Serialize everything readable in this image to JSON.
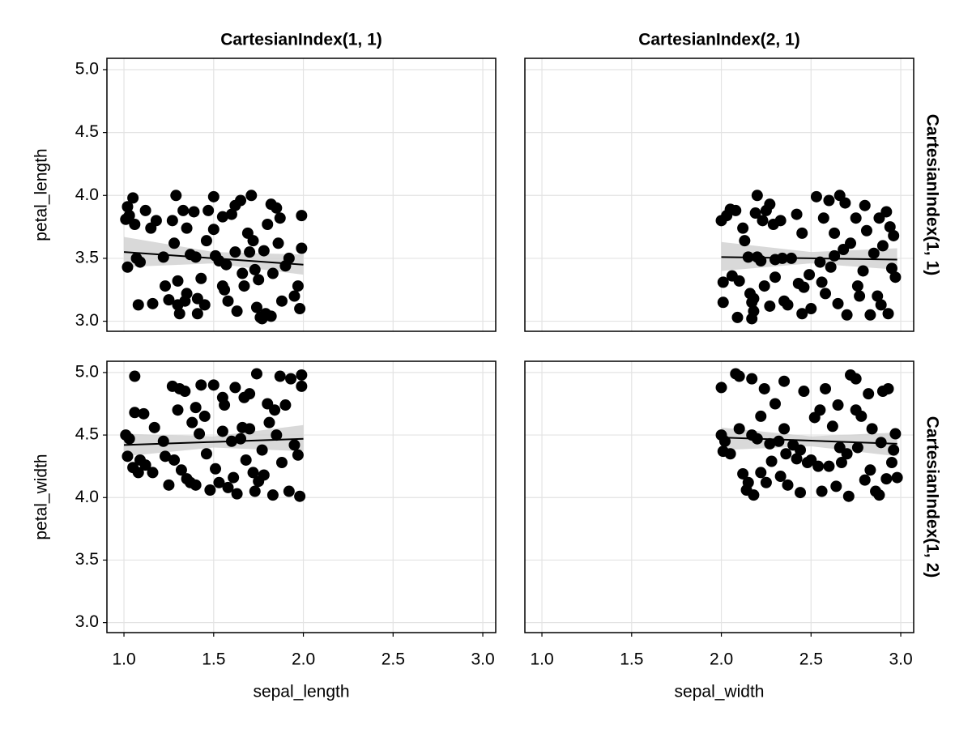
{
  "chart_data": {
    "type": "scatter",
    "color": "#000000",
    "band_color": "#d0d0d0",
    "grid": true,
    "column_titles": [
      "CartesianIndex(1, 1)",
      "CartesianIndex(2, 1)"
    ],
    "row_titles": [
      "CartesianIndex(1, 1)",
      "CartesianIndex(1, 2)"
    ],
    "x_labels": [
      "sepal_length",
      "sepal_width"
    ],
    "y_labels": [
      "petal_length",
      "petal_width"
    ],
    "xlim": [
      0.905,
      3.072
    ],
    "ylim": [
      2.92,
      5.09
    ],
    "xticks": [
      {
        "value": 1,
        "label": "1.0"
      },
      {
        "value": 1.5,
        "label": "1.5"
      },
      {
        "value": 2,
        "label": "2.0"
      },
      {
        "value": 2.5,
        "label": "2.5"
      },
      {
        "value": 3,
        "label": "3.0"
      }
    ],
    "yticks": [
      {
        "value": 3,
        "label": "3.0"
      },
      {
        "value": 3.5,
        "label": "3.5"
      },
      {
        "value": 4,
        "label": "4.0"
      },
      {
        "value": 4.5,
        "label": "4.5"
      },
      {
        "value": 5,
        "label": "5.0"
      }
    ],
    "panels": [
      {
        "x": [
          1.02,
          1.05,
          1.01,
          1.03,
          1.06,
          1.02,
          1.07,
          1.09,
          1.08,
          1.12,
          1.15,
          1.18,
          1.16,
          1.23,
          1.25,
          1.27,
          1.28,
          1.29,
          1.3,
          1.31,
          1.3,
          1.33,
          1.35,
          1.35,
          1.37,
          1.39,
          1.4,
          1.41,
          1.41,
          1.43,
          1.45,
          1.47,
          1.5,
          1.5,
          1.51,
          1.53,
          1.55,
          1.55,
          1.57,
          1.58,
          1.6,
          1.62,
          1.63,
          1.65,
          1.66,
          1.67,
          1.7,
          1.71,
          1.72,
          1.73,
          1.74,
          1.75,
          1.76,
          1.78,
          1.79,
          1.8,
          1.82,
          1.83,
          1.85,
          1.87,
          1.88,
          1.9,
          1.92,
          1.97,
          1.98,
          1.99,
          1.99,
          1.22,
          1.46,
          1.62,
          1.69,
          1.95,
          1.86,
          1.34,
          1.56,
          1.77,
          1.82
        ],
        "y": [
          3.91,
          3.98,
          3.81,
          3.84,
          3.77,
          3.43,
          3.5,
          3.47,
          3.13,
          3.88,
          3.74,
          3.8,
          3.14,
          3.28,
          3.17,
          3.8,
          3.62,
          4.0,
          3.32,
          3.06,
          3.13,
          3.88,
          3.22,
          3.74,
          3.53,
          3.87,
          3.51,
          3.18,
          3.06,
          3.34,
          3.13,
          3.88,
          3.99,
          3.73,
          3.52,
          3.48,
          3.83,
          3.28,
          3.45,
          3.16,
          3.85,
          3.92,
          3.08,
          3.96,
          3.38,
          3.28,
          3.55,
          4.0,
          3.64,
          3.41,
          3.11,
          3.33,
          3.03,
          3.56,
          3.06,
          3.77,
          3.93,
          3.38,
          3.9,
          3.82,
          3.16,
          3.44,
          3.5,
          3.28,
          3.1,
          3.84,
          3.58,
          3.51,
          3.64,
          3.55,
          3.7,
          3.2,
          3.62,
          3.16,
          3.25,
          3.02,
          3.04
        ],
        "fit": {
          "x": [
            1.0,
            1.5,
            2.0
          ],
          "y": [
            3.55,
            3.5,
            3.45
          ],
          "lower": [
            3.43,
            3.46,
            3.37
          ],
          "upper": [
            3.67,
            3.55,
            3.53
          ]
        }
      },
      {
        "x": [
          2.0,
          2.01,
          2.01,
          2.03,
          2.05,
          2.06,
          2.08,
          2.1,
          2.09,
          2.12,
          2.13,
          2.15,
          2.16,
          2.17,
          2.17,
          2.18,
          2.19,
          2.2,
          2.2,
          2.22,
          2.23,
          2.24,
          2.25,
          2.27,
          2.27,
          2.29,
          2.3,
          2.33,
          2.34,
          2.35,
          2.37,
          2.39,
          2.42,
          2.43,
          2.45,
          2.46,
          2.49,
          2.5,
          2.53,
          2.55,
          2.56,
          2.57,
          2.58,
          2.6,
          2.61,
          2.63,
          2.65,
          2.66,
          2.68,
          2.69,
          2.7,
          2.72,
          2.75,
          2.77,
          2.79,
          2.8,
          2.81,
          2.83,
          2.85,
          2.87,
          2.88,
          2.9,
          2.92,
          2.93,
          2.94,
          2.95,
          2.96,
          2.97,
          2.18,
          2.63,
          2.76,
          2.89,
          2.3,
          2.45
        ],
        "y": [
          3.8,
          3.31,
          3.15,
          3.84,
          3.89,
          3.36,
          3.88,
          3.32,
          3.03,
          3.74,
          3.64,
          3.51,
          3.22,
          3.02,
          3.15,
          3.08,
          3.86,
          4.0,
          3.51,
          3.48,
          3.8,
          3.28,
          3.88,
          3.93,
          3.12,
          3.77,
          3.49,
          3.8,
          3.5,
          3.16,
          3.13,
          3.5,
          3.85,
          3.3,
          3.7,
          3.27,
          3.37,
          3.1,
          3.99,
          3.47,
          3.31,
          3.82,
          3.22,
          3.96,
          3.43,
          3.52,
          3.14,
          4.0,
          3.57,
          3.94,
          3.05,
          3.62,
          3.82,
          3.2,
          3.4,
          3.92,
          3.72,
          3.05,
          3.54,
          3.2,
          3.82,
          3.6,
          3.87,
          3.06,
          3.75,
          3.42,
          3.68,
          3.35,
          3.18,
          3.7,
          3.28,
          3.13,
          3.35,
          3.06
        ],
        "fit": {
          "x": [
            2.0,
            2.5,
            2.98
          ],
          "y": [
            3.51,
            3.5,
            3.49
          ],
          "lower": [
            3.4,
            3.46,
            3.41
          ],
          "upper": [
            3.63,
            3.55,
            3.58
          ]
        }
      },
      {
        "x": [
          1.01,
          1.02,
          1.03,
          1.05,
          1.06,
          1.06,
          1.08,
          1.09,
          1.11,
          1.12,
          1.16,
          1.17,
          1.22,
          1.23,
          1.25,
          1.27,
          1.28,
          1.3,
          1.31,
          1.32,
          1.34,
          1.35,
          1.37,
          1.38,
          1.4,
          1.42,
          1.43,
          1.45,
          1.46,
          1.48,
          1.5,
          1.51,
          1.53,
          1.55,
          1.56,
          1.58,
          1.6,
          1.62,
          1.63,
          1.65,
          1.67,
          1.68,
          1.7,
          1.7,
          1.72,
          1.73,
          1.74,
          1.75,
          1.77,
          1.78,
          1.8,
          1.81,
          1.83,
          1.85,
          1.87,
          1.88,
          1.9,
          1.92,
          1.93,
          1.95,
          1.97,
          1.98,
          1.99,
          1.99,
          1.4,
          1.55,
          1.61,
          1.84,
          1.66
        ],
        "y": [
          4.5,
          4.33,
          4.47,
          4.24,
          4.97,
          4.68,
          4.2,
          4.3,
          4.67,
          4.26,
          4.2,
          4.56,
          4.45,
          4.33,
          4.1,
          4.89,
          4.3,
          4.7,
          4.87,
          4.22,
          4.85,
          4.15,
          4.12,
          4.6,
          4.1,
          4.51,
          4.9,
          4.65,
          4.35,
          4.06,
          4.9,
          4.23,
          4.12,
          4.53,
          4.74,
          4.08,
          4.45,
          4.88,
          4.03,
          4.47,
          4.8,
          4.3,
          4.55,
          4.83,
          4.2,
          4.05,
          4.99,
          4.13,
          4.38,
          4.18,
          4.75,
          4.6,
          4.02,
          4.5,
          4.97,
          4.28,
          4.74,
          4.05,
          4.95,
          4.42,
          4.34,
          4.01,
          4.98,
          4.89,
          4.72,
          4.8,
          4.16,
          4.7,
          4.56
        ],
        "fit": {
          "x": [
            1.0,
            1.5,
            2.0
          ],
          "y": [
            4.42,
            4.445,
            4.47
          ],
          "lower": [
            4.33,
            4.4,
            4.37
          ],
          "upper": [
            4.51,
            4.49,
            4.58
          ]
        }
      },
      {
        "x": [
          2.0,
          2.0,
          2.01,
          2.02,
          2.05,
          2.08,
          2.1,
          2.1,
          2.12,
          2.14,
          2.15,
          2.17,
          2.17,
          2.18,
          2.2,
          2.22,
          2.22,
          2.24,
          2.25,
          2.27,
          2.28,
          2.3,
          2.32,
          2.33,
          2.35,
          2.36,
          2.37,
          2.4,
          2.42,
          2.44,
          2.46,
          2.48,
          2.5,
          2.52,
          2.54,
          2.55,
          2.58,
          2.6,
          2.62,
          2.64,
          2.65,
          2.67,
          2.7,
          2.71,
          2.72,
          2.75,
          2.76,
          2.78,
          2.8,
          2.82,
          2.84,
          2.86,
          2.88,
          2.89,
          2.9,
          2.92,
          2.93,
          2.95,
          2.96,
          2.97,
          2.98,
          2.56,
          2.66,
          2.83,
          2.35,
          2.44,
          2.75
        ],
        "y": [
          4.88,
          4.5,
          4.37,
          4.45,
          4.35,
          4.99,
          4.97,
          4.55,
          4.19,
          4.06,
          4.12,
          4.95,
          4.5,
          4.02,
          4.47,
          4.65,
          4.2,
          4.87,
          4.12,
          4.43,
          4.29,
          4.75,
          4.45,
          4.17,
          4.93,
          4.35,
          4.1,
          4.42,
          4.31,
          4.04,
          4.85,
          4.28,
          4.3,
          4.64,
          4.25,
          4.7,
          4.87,
          4.25,
          4.57,
          4.09,
          4.74,
          4.28,
          4.35,
          4.01,
          4.98,
          4.95,
          4.4,
          4.65,
          4.14,
          4.83,
          4.55,
          4.05,
          4.02,
          4.44,
          4.85,
          4.15,
          4.87,
          4.28,
          4.38,
          4.51,
          4.16,
          4.05,
          4.4,
          4.22,
          4.55,
          4.38,
          4.7
        ],
        "fit": {
          "x": [
            2.0,
            2.5,
            2.98
          ],
          "y": [
            4.48,
            4.455,
            4.43
          ],
          "lower": [
            4.38,
            4.41,
            4.33
          ],
          "upper": [
            4.56,
            4.49,
            4.52
          ]
        }
      }
    ]
  }
}
